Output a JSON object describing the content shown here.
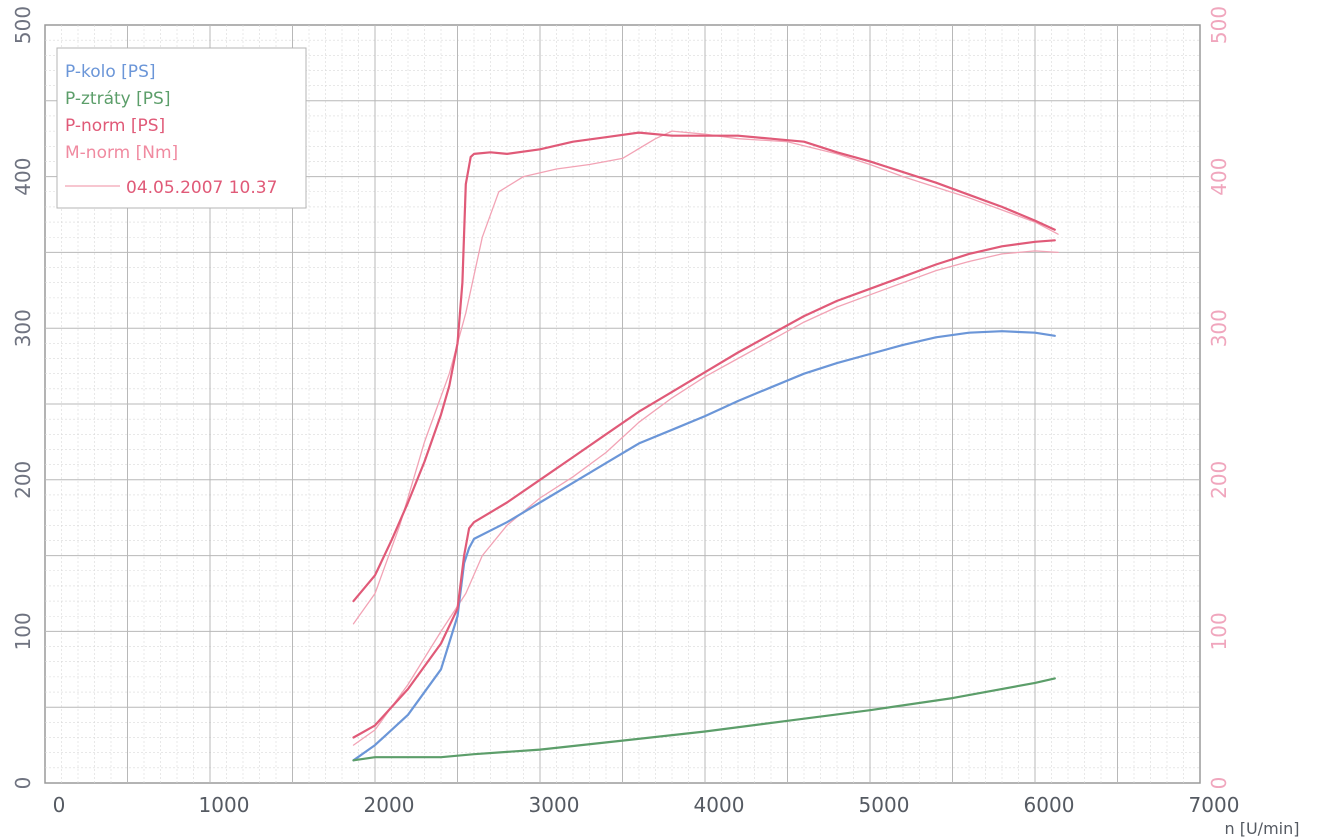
{
  "chart_data": {
    "type": "line",
    "xlabel": "n [U/min]",
    "x_ticks": [
      "0",
      "1000",
      "2000",
      "3000",
      "4000",
      "5000",
      "6000",
      "7000"
    ],
    "y_ticks_left": [
      "0",
      "100",
      "200",
      "300",
      "400",
      "500"
    ],
    "y_ticks_right": [
      "0",
      "100",
      "200",
      "300",
      "400",
      "500"
    ],
    "xlim": [
      0,
      7000
    ],
    "ylim": [
      0,
      500
    ],
    "grid": true,
    "legend_position": "top-left",
    "legend_date": "04.05.2007 10.37",
    "series": [
      {
        "name": "P-kolo [PS]",
        "color": "#6b96d8",
        "x": [
          1870,
          2000,
          2200,
          2400,
          2500,
          2540,
          2570,
          2600,
          2800,
          3000,
          3200,
          3400,
          3600,
          3800,
          4000,
          4200,
          4400,
          4600,
          4800,
          5000,
          5200,
          5400,
          5600,
          5800,
          6000,
          6120
        ],
        "y": [
          15,
          25,
          45,
          75,
          110,
          145,
          155,
          161,
          172,
          185,
          198,
          211,
          224,
          233,
          242,
          252,
          261,
          270,
          277,
          283,
          289,
          294,
          297,
          298,
          297,
          295
        ]
      },
      {
        "name": "P-ztráty [PS]",
        "color": "#5c9e6a",
        "x": [
          1870,
          2000,
          2400,
          2600,
          3000,
          3500,
          4000,
          4500,
          5000,
          5500,
          6000,
          6120
        ],
        "y": [
          15,
          17,
          17,
          19,
          22,
          28,
          34,
          41,
          48,
          56,
          66,
          69
        ]
      },
      {
        "name": "P-norm [PS]",
        "color": "#e05a78",
        "x": [
          1870,
          2000,
          2200,
          2400,
          2500,
          2540,
          2570,
          2600,
          2800,
          3000,
          3200,
          3400,
          3600,
          3800,
          4000,
          4200,
          4400,
          4600,
          4800,
          5000,
          5200,
          5400,
          5600,
          5800,
          6000,
          6120
        ],
        "y": [
          30,
          38,
          62,
          92,
          115,
          150,
          168,
          172,
          185,
          200,
          215,
          230,
          245,
          258,
          271,
          284,
          296,
          308,
          318,
          326,
          334,
          342,
          349,
          354,
          357,
          358
        ]
      },
      {
        "name": "M-norm [Nm]",
        "color": "#e05a78",
        "x": [
          1870,
          2000,
          2100,
          2200,
          2300,
          2400,
          2450,
          2500,
          2530,
          2550,
          2580,
          2600,
          2700,
          2800,
          3000,
          3200,
          3400,
          3600,
          3800,
          4000,
          4200,
          4400,
          4600,
          4800,
          5000,
          5200,
          5400,
          5600,
          5800,
          6000,
          6120
        ],
        "y": [
          120,
          137,
          160,
          185,
          212,
          243,
          262,
          290,
          330,
          395,
          413,
          415,
          416,
          415,
          418,
          423,
          426,
          429,
          427,
          427,
          427,
          425,
          423,
          416,
          410,
          403,
          396,
          388,
          380,
          371,
          365
        ]
      }
    ],
    "comparison_series": [
      {
        "name": "04.05.2007 10.37",
        "color": "#f2a3b5",
        "x": [
          1870,
          2000,
          2150,
          2300,
          2450,
          2550,
          2650,
          2750,
          2900,
          3100,
          3300,
          3500,
          3700,
          3800,
          4000,
          4200,
          4500,
          4800,
          5000,
          5200,
          5400,
          5600,
          5800,
          6000,
          6140
        ],
        "y": [
          105,
          125,
          170,
          225,
          270,
          310,
          360,
          390,
          400,
          405,
          408,
          412,
          425,
          430,
          428,
          425,
          423,
          415,
          408,
          400,
          393,
          386,
          378,
          370,
          362
        ]
      },
      {
        "name": "04.05.2007 10.37",
        "color": "#f2a3b5",
        "x": [
          1870,
          2000,
          2200,
          2400,
          2550,
          2650,
          2800,
          3000,
          3200,
          3400,
          3600,
          3800,
          4000,
          4200,
          4400,
          4600,
          4800,
          5000,
          5200,
          5400,
          5600,
          5800,
          6000,
          6140
        ],
        "y": [
          25,
          35,
          65,
          100,
          125,
          150,
          170,
          188,
          202,
          218,
          238,
          254,
          268,
          280,
          292,
          304,
          314,
          322,
          330,
          338,
          344,
          349,
          351,
          350
        ]
      }
    ]
  }
}
